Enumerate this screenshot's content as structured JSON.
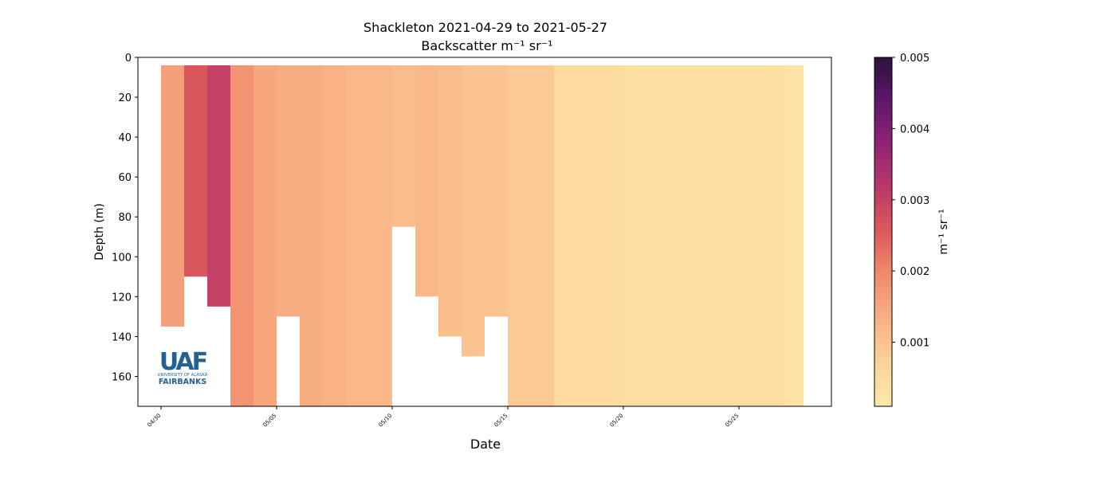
{
  "chart_data": {
    "type": "heatmap",
    "title_line1": "Shackleton 2021-04-29 to 2021-05-27",
    "title_line2": "Backscatter m⁻¹ sr⁻¹",
    "xlabel": "Date",
    "ylabel": "Depth (m)",
    "x_tick_labels": [
      "04/30",
      "05/05",
      "05/10",
      "05/15",
      "05/20",
      "05/25"
    ],
    "x_tick_values": [
      "2021-04-30",
      "2021-05-05",
      "2021-05-10",
      "2021-05-15",
      "2021-05-20",
      "2021-05-25"
    ],
    "xlim": [
      "2021-04-29",
      "2021-05-29"
    ],
    "y_ticks": [
      0,
      20,
      40,
      60,
      80,
      100,
      120,
      140,
      160
    ],
    "ylim": [
      175,
      0
    ],
    "y_inverted": true,
    "colormap": "magma_r",
    "colorbar": {
      "label": "m⁻¹ sr⁻¹",
      "range": [
        0.0001,
        0.005
      ],
      "ticks": [
        0.001,
        0.002,
        0.003,
        0.004,
        0.005
      ],
      "tick_labels": [
        "0.001",
        "0.002",
        "0.003",
        "0.004",
        "0.005"
      ]
    },
    "profiles_summary": [
      {
        "date": "2021-04-30",
        "max_depth": 135,
        "backscatter": 0.0016
      },
      {
        "date": "2021-05-01",
        "max_depth": 110,
        "backscatter": 0.0026
      },
      {
        "date": "2021-05-02",
        "max_depth": 125,
        "backscatter": 0.003
      },
      {
        "date": "2021-05-03",
        "max_depth": 175,
        "backscatter": 0.0018
      },
      {
        "date": "2021-05-04",
        "max_depth": 175,
        "backscatter": 0.0015
      },
      {
        "date": "2021-05-05",
        "max_depth": 130,
        "backscatter": 0.0014
      },
      {
        "date": "2021-05-06",
        "max_depth": 175,
        "backscatter": 0.0014
      },
      {
        "date": "2021-05-07",
        "max_depth": 175,
        "backscatter": 0.0013
      },
      {
        "date": "2021-05-08",
        "max_depth": 175,
        "backscatter": 0.0012
      },
      {
        "date": "2021-05-09",
        "max_depth": 175,
        "backscatter": 0.0012
      },
      {
        "date": "2021-05-10",
        "max_depth": 85,
        "backscatter": 0.0011
      },
      {
        "date": "2021-05-11",
        "max_depth": 120,
        "backscatter": 0.0012
      },
      {
        "date": "2021-05-12",
        "max_depth": 140,
        "backscatter": 0.0011
      },
      {
        "date": "2021-05-13",
        "max_depth": 150,
        "backscatter": 0.001
      },
      {
        "date": "2021-05-14",
        "max_depth": 130,
        "backscatter": 0.001
      },
      {
        "date": "2021-05-15",
        "max_depth": 175,
        "backscatter": 0.0009
      },
      {
        "date": "2021-05-17",
        "max_depth": 175,
        "backscatter": 0.0005
      },
      {
        "date": "2021-05-20",
        "max_depth": 175,
        "backscatter": 0.0004
      },
      {
        "date": "2021-05-23",
        "max_depth": 175,
        "backscatter": 0.0004
      },
      {
        "date": "2021-05-25",
        "max_depth": 175,
        "backscatter": 0.0004
      },
      {
        "date": "2021-05-27",
        "max_depth": 175,
        "backscatter": 0.0003
      }
    ]
  },
  "logo": {
    "mark": "UAF",
    "line1": "UNIVERSITY OF ALASKA",
    "line2": "FAIRBANKS",
    "color": "#236192"
  }
}
